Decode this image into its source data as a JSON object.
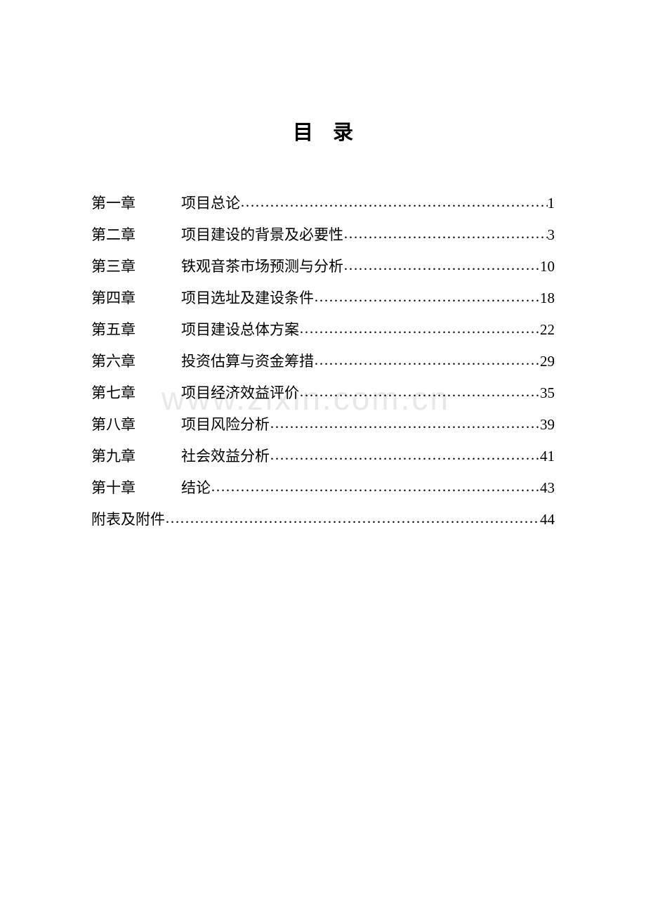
{
  "title": "目录",
  "watermark": "www.zixin.com.cn",
  "text_color": "#000000",
  "background_color": "#ffffff",
  "watermark_color": "#e8e8e8",
  "title_fontsize": 29,
  "body_fontsize": 21,
  "font_family": "SimSun",
  "toc": {
    "entries": [
      {
        "chapter": "第一章",
        "title": "项目总论",
        "page": "1"
      },
      {
        "chapter": "第二章",
        "title": "项目建设的背景及必要性",
        "page": "3"
      },
      {
        "chapter": "第三章",
        "title": "铁观音茶市场预测与分析",
        "page": "10"
      },
      {
        "chapter": "第四章",
        "title": "项目选址及建设条件",
        "page": "18"
      },
      {
        "chapter": "第五章",
        "title": "项目建设总体方案",
        "page": "22"
      },
      {
        "chapter": "第六章",
        "title": "投资估算与资金筹措",
        "page": "29"
      },
      {
        "chapter": "第七章",
        "title": "项目经济效益评价",
        "page": "35"
      },
      {
        "chapter": "第八章",
        "title": "项目风险分析",
        "page": "39"
      },
      {
        "chapter": "第九章",
        "title": "社会效益分析",
        "page": "41"
      },
      {
        "chapter": "第十章",
        "title": "结论",
        "page": "43"
      }
    ],
    "appendix": {
      "label": "附表及附件",
      "page": "44"
    }
  },
  "leader_char": "…"
}
